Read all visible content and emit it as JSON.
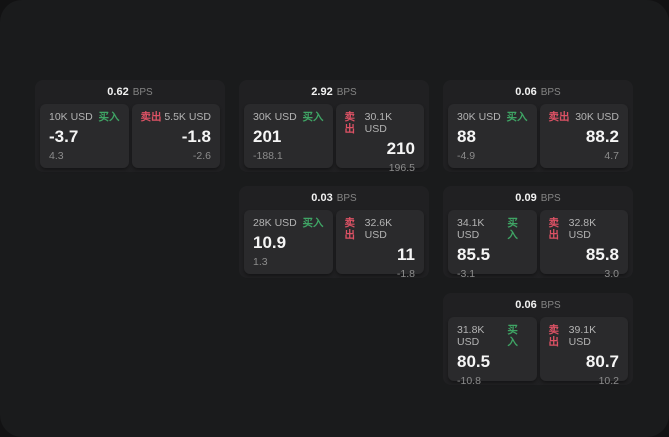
{
  "labels": {
    "buy": "买入",
    "sell": "卖出",
    "bps_unit": "BPS"
  },
  "colors": {
    "buy_green": "#3fa565",
    "sell_red": "#dd5265",
    "outer_bg": "#121213",
    "surface_bg": "#1a1b1c",
    "card_bg": "#202022",
    "tile_bg": "#2a2a2c"
  },
  "cards": [
    {
      "bps": "0.62",
      "buy_amount": "10K USD",
      "buy_value": "-3.7",
      "buy_sub": "4.3",
      "sell_amount": "5.5K USD",
      "sell_value": "-1.8",
      "sell_sub": "-2.6"
    },
    {
      "bps": "2.92",
      "buy_amount": "30K USD",
      "buy_value": "201",
      "buy_sub": "-188.1",
      "sell_amount": "30.1K USD",
      "sell_value": "210",
      "sell_sub": "196.5"
    },
    {
      "bps": "0.06",
      "buy_amount": "30K USD",
      "buy_value": "88",
      "buy_sub": "-4.9",
      "sell_amount": "30K USD",
      "sell_value": "88.2",
      "sell_sub": "4.7"
    },
    {
      "bps": "0.03",
      "buy_amount": "28K USD",
      "buy_value": "10.9",
      "buy_sub": "1.3",
      "sell_amount": "32.6K USD",
      "sell_value": "11",
      "sell_sub": "-1.8"
    },
    {
      "bps": "0.09",
      "buy_amount": "34.1K USD",
      "buy_value": "85.5",
      "buy_sub": "-3.1",
      "sell_amount": "32.8K USD",
      "sell_value": "85.8",
      "sell_sub": "3.0"
    },
    {
      "bps": "0.06",
      "buy_amount": "31.8K USD",
      "buy_value": "80.5",
      "buy_sub": "-10.8",
      "sell_amount": "39.1K USD",
      "sell_value": "80.7",
      "sell_sub": "10.2"
    }
  ]
}
